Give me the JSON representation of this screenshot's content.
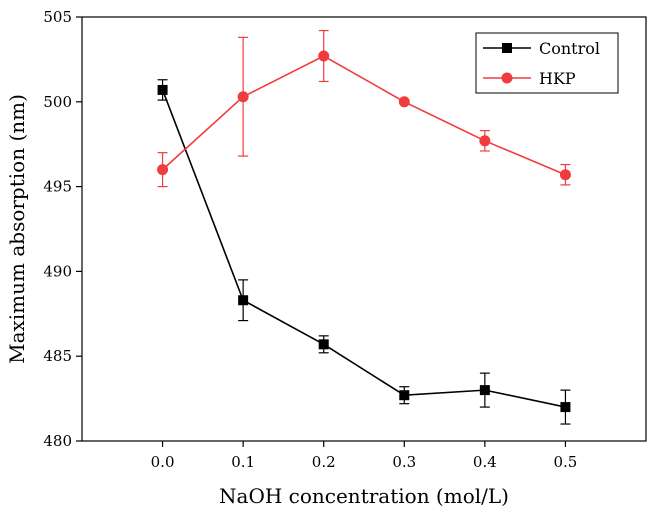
{
  "chart_data": {
    "type": "line",
    "title": "",
    "xlabel": "NaOH concentration (mol/L)",
    "ylabel": "Maximum absorption (nm)",
    "xlim": [
      -0.1,
      0.6
    ],
    "ylim": [
      480,
      505
    ],
    "x": [
      0.0,
      0.1,
      0.2,
      0.3,
      0.4,
      0.5
    ],
    "x_ticks": [
      "0.0",
      "0.1",
      "0.2",
      "0.3",
      "0.4",
      "0.5"
    ],
    "y_ticks": [
      "480",
      "485",
      "490",
      "495",
      "500",
      "505"
    ],
    "grid": false,
    "legend_position": "top-right",
    "series": [
      {
        "name": "Control",
        "color": "#000000",
        "marker": "square",
        "values": [
          500.7,
          488.3,
          485.7,
          482.7,
          483.0,
          482.0
        ],
        "errors": [
          0.6,
          1.2,
          0.5,
          0.5,
          1.0,
          1.0
        ]
      },
      {
        "name": "HKP",
        "color": "#f03c3c",
        "marker": "circle",
        "values": [
          496.0,
          500.3,
          502.7,
          500.0,
          497.7,
          495.7
        ],
        "errors": [
          1.0,
          3.5,
          1.5,
          0.0,
          0.6,
          0.6
        ]
      }
    ]
  }
}
